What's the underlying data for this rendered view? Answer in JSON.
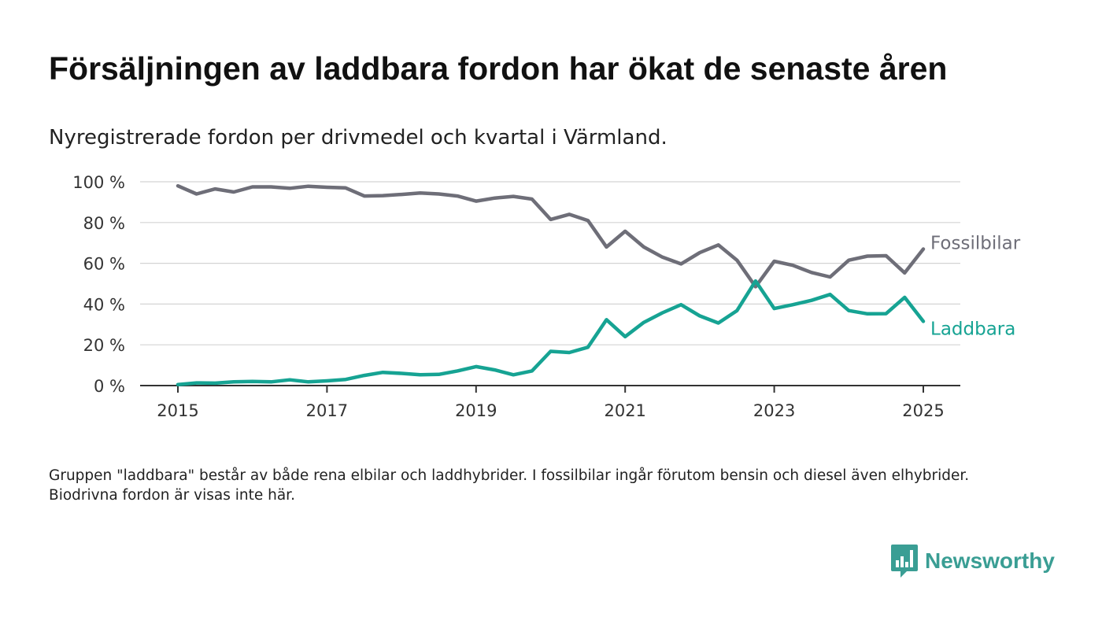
{
  "title": "Försäljningen av laddbara fordon har ökat de senaste åren",
  "subtitle": "Nyregistrerade fordon per drivmedel och kvartal i Värmland.",
  "footnote": "Gruppen \"laddbara\" består av både rena elbilar och laddhybrider. I fossilbilar ingår förutom bensin och diesel även elhybrider. Biodrivna fordon är visas inte här.",
  "brand": {
    "name": "Newsworthy",
    "logo_icon": "bar-chart-speech-bubble-icon",
    "color": "#3a9e94"
  },
  "chart_data": {
    "type": "line",
    "x_unit": "quarter",
    "x": [
      "2015-Q1",
      "2015-Q2",
      "2015-Q3",
      "2015-Q4",
      "2016-Q1",
      "2016-Q2",
      "2016-Q3",
      "2016-Q4",
      "2017-Q1",
      "2017-Q2",
      "2017-Q3",
      "2017-Q4",
      "2018-Q1",
      "2018-Q2",
      "2018-Q3",
      "2018-Q4",
      "2019-Q1",
      "2019-Q2",
      "2019-Q3",
      "2019-Q4",
      "2020-Q1",
      "2020-Q2",
      "2020-Q3",
      "2020-Q4",
      "2021-Q1",
      "2021-Q2",
      "2021-Q3",
      "2021-Q4",
      "2022-Q1",
      "2022-Q2",
      "2022-Q3",
      "2022-Q4",
      "2023-Q1",
      "2023-Q2",
      "2023-Q3",
      "2023-Q4",
      "2024-Q1",
      "2024-Q2",
      "2024-Q3",
      "2024-Q4",
      "2025-Q1"
    ],
    "x_ticks": [
      "2015",
      "2017",
      "2019",
      "2021",
      "2023",
      "2025"
    ],
    "y_ticks": [
      "0 %",
      "20 %",
      "40 %",
      "60 %",
      "80 %",
      "100 %"
    ],
    "ylim": [
      0,
      100
    ],
    "xlabel": "",
    "ylabel": "",
    "grid": "horizontal",
    "series": [
      {
        "name": "Fossilbilar",
        "color": "#6e6e78",
        "values": [
          98.0,
          94.0,
          96.5,
          95.0,
          97.5,
          97.5,
          96.8,
          97.8,
          97.3,
          97.0,
          93.0,
          93.2,
          93.8,
          94.5,
          94.0,
          93.0,
          90.5,
          92.0,
          92.8,
          91.5,
          81.5,
          84.0,
          81.0,
          68.0,
          75.7,
          68.0,
          63.0,
          59.7,
          65.2,
          69.0,
          61.5,
          48.5,
          61.0,
          59.0,
          55.5,
          53.3,
          61.5,
          63.5,
          63.7,
          55.3,
          67.0
        ]
      },
      {
        "name": "Laddbara",
        "color": "#16a393",
        "values": [
          0.5,
          1.3,
          1.2,
          1.8,
          2.0,
          1.8,
          2.8,
          1.8,
          2.3,
          3.0,
          5.0,
          6.5,
          6.0,
          5.3,
          5.5,
          7.2,
          9.3,
          7.7,
          5.3,
          7.2,
          16.8,
          16.2,
          18.8,
          32.3,
          24.0,
          31.0,
          35.7,
          39.7,
          34.2,
          30.7,
          36.8,
          51.3,
          37.8,
          39.7,
          41.8,
          44.7,
          36.8,
          35.2,
          35.3,
          43.3,
          31.5
        ]
      }
    ],
    "axis_color": "#333333",
    "grid_color": "#d4d4d4"
  }
}
